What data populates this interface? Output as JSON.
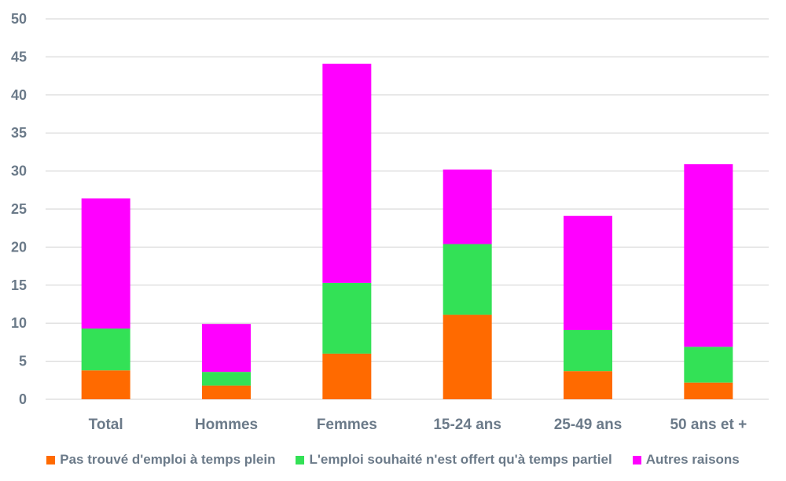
{
  "chart_data": {
    "type": "bar",
    "stacked": true,
    "categories": [
      "Total",
      "Hommes",
      "Femmes",
      "15-24 ans",
      "25-49 ans",
      "50 ans et +"
    ],
    "series": [
      {
        "name": "Pas trouvé d'emploi à temps plein",
        "color": "#ff6a00",
        "values": [
          3.8,
          1.8,
          6.0,
          11.1,
          3.7,
          2.2
        ]
      },
      {
        "name": "L'emploi souhaité n'est offert qu'à temps partiel",
        "color": "#33e156",
        "values": [
          5.5,
          1.8,
          9.3,
          9.3,
          5.4,
          4.7
        ]
      },
      {
        "name": "Autres raisons",
        "color": "#ff00ff",
        "values": [
          17.1,
          6.3,
          28.8,
          9.8,
          15.0,
          24.0
        ]
      }
    ],
    "ylim": [
      0,
      50
    ],
    "yticks": [
      "0",
      "5",
      "10",
      "15",
      "20",
      "25",
      "30",
      "35",
      "40",
      "45",
      "50"
    ],
    "grid": true,
    "legend_position": "bottom",
    "title": "",
    "xlabel": "",
    "ylabel": ""
  }
}
